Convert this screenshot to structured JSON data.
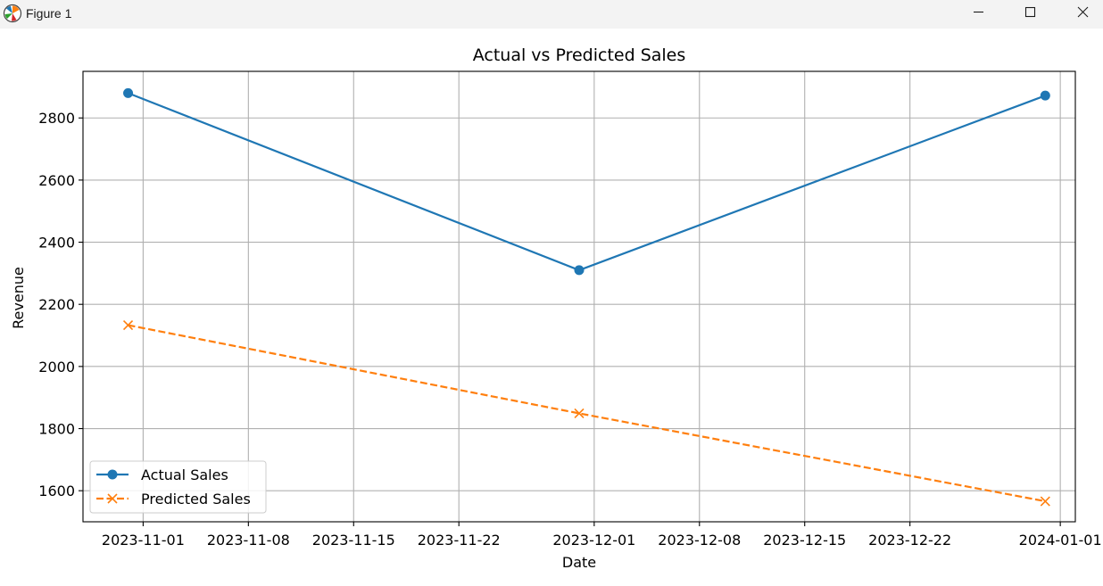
{
  "window": {
    "title": "Figure 1",
    "icon": "matplotlib-logo-icon",
    "controls": [
      "minimize-icon",
      "maximize-icon",
      "close-icon"
    ]
  },
  "chart_data": {
    "type": "line",
    "title": "Actual vs Predicted Sales",
    "xlabel": "Date",
    "ylabel": "Revenue",
    "x": [
      "2023-10-31",
      "2023-11-30",
      "2023-12-31"
    ],
    "xlim": [
      "2023-10-28",
      "2024-01-02"
    ],
    "ylim": [
      1500,
      2950
    ],
    "xticks": [
      "2023-11-01",
      "2023-11-08",
      "2023-11-15",
      "2023-11-22",
      "2023-12-01",
      "2023-12-08",
      "2023-12-15",
      "2023-12-22",
      "2024-01-01"
    ],
    "yticks": [
      1600,
      1800,
      2000,
      2200,
      2400,
      2600,
      2800
    ],
    "grid": true,
    "legend_position": "lower-left",
    "series": [
      {
        "name": "Actual Sales",
        "values": [
          2880,
          2310,
          2872
        ],
        "color": "#1f77b4",
        "line_style": "solid",
        "marker": "circle"
      },
      {
        "name": "Predicted Sales",
        "values": [
          2133,
          1849,
          1566
        ],
        "color": "#ff7f0e",
        "line_style": "dashed",
        "marker": "x"
      }
    ]
  }
}
